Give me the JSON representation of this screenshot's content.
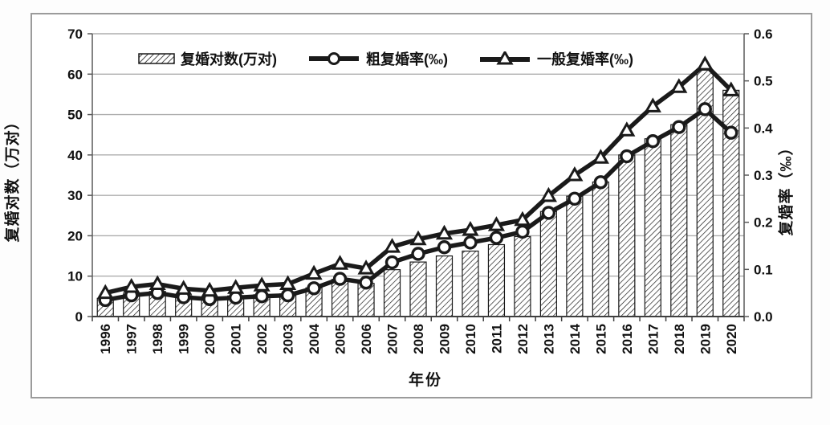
{
  "chart_data": {
    "type": "bar",
    "combo": true,
    "title": "",
    "xlabel": "年份",
    "x": [
      "1996",
      "1997",
      "1998",
      "1999",
      "2000",
      "2001",
      "2002",
      "2003",
      "2004",
      "2005",
      "2006",
      "2007",
      "2008",
      "2009",
      "2010",
      "2011",
      "2012",
      "2013",
      "2014",
      "2015",
      "2016",
      "2017",
      "2018",
      "2019",
      "2020"
    ],
    "left_axis": {
      "label": "复婚对数（万对）",
      "min": 0,
      "max": 70,
      "ticks": [
        0,
        10,
        20,
        30,
        40,
        50,
        60,
        70
      ]
    },
    "right_axis": {
      "label": "复婚率（‰）",
      "min": 0,
      "max": 0.6,
      "ticks": [
        "0.0",
        "0.1",
        "0.2",
        "0.3",
        "0.4",
        "0.5",
        "0.6"
      ]
    },
    "grid": true,
    "legend_position": "top-inside",
    "series": [
      {
        "name": "复婚对数(万对)",
        "type": "bar",
        "axis": "left",
        "marker": "none",
        "values": [
          4.5,
          5.6,
          6.2,
          5.2,
          4.7,
          5.1,
          5.4,
          5.6,
          7.1,
          9.2,
          8.2,
          11.6,
          13.5,
          15.0,
          16.2,
          17.8,
          19.8,
          26.0,
          29.8,
          33.3,
          40.0,
          44.0,
          47.5,
          61.0,
          56.0
        ]
      },
      {
        "name": "粗复婚率(‰)",
        "type": "line",
        "axis": "right",
        "marker": "circle",
        "values": [
          0.035,
          0.045,
          0.05,
          0.041,
          0.037,
          0.04,
          0.043,
          0.045,
          0.06,
          0.08,
          0.072,
          0.115,
          0.133,
          0.147,
          0.157,
          0.167,
          0.18,
          0.22,
          0.25,
          0.285,
          0.34,
          0.372,
          0.402,
          0.44,
          0.39
        ]
      },
      {
        "name": "一般复婚率(‰)",
        "type": "line",
        "axis": "right",
        "marker": "triangle",
        "values": [
          0.05,
          0.063,
          0.069,
          0.059,
          0.055,
          0.061,
          0.066,
          0.069,
          0.091,
          0.112,
          0.102,
          0.148,
          0.164,
          0.176,
          0.184,
          0.194,
          0.205,
          0.256,
          0.3,
          0.337,
          0.395,
          0.446,
          0.487,
          0.535,
          0.48
        ]
      }
    ],
    "colors": {
      "ink": "#1a1a1a",
      "grid": "#aeaeae",
      "axis": "#5a5a5a",
      "frame": "#9b9b9b",
      "bar_fill": "#ffffff"
    }
  }
}
